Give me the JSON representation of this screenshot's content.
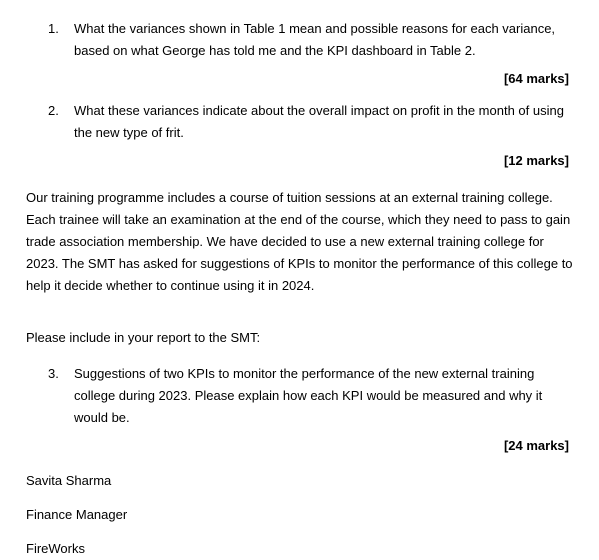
{
  "items": [
    {
      "num": "1.",
      "text": "What the variances shown in Table 1 mean and possible reasons for each variance, based on what George has told me and the KPI dashboard in Table 2.",
      "marks": "[64 marks]"
    },
    {
      "num": "2.",
      "text": "What these variances indicate about the overall impact on profit in the month of using the new type of frit.",
      "marks": "[12 marks]"
    }
  ],
  "paragraph": "Our training programme includes a course of tuition sessions at an external training college. Each trainee will take an examination at the end of the course, which they need to pass to gain trade association membership. We have decided to use a new external training college for 2023. The SMT has asked for suggestions of KPIs to monitor the performance of this college to help it decide whether to continue using it in 2024.",
  "reportPrompt": "Please include in your report to the SMT:",
  "item3": {
    "num": "3.",
    "text": "Suggestions of two KPIs to monitor the performance of the new external training college during 2023. Please explain how each KPI would be measured and why it would be.",
    "marks": "[24 marks]"
  },
  "signature": {
    "name": "Savita Sharma",
    "role": "Finance Manager",
    "company": "FireWorks"
  }
}
